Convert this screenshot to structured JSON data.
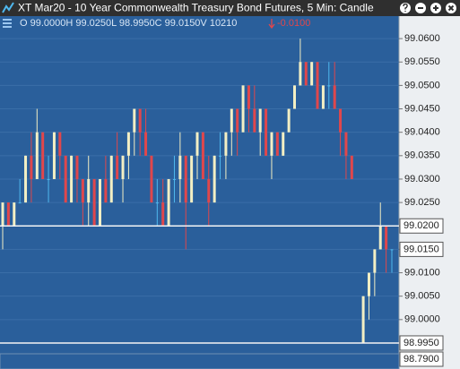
{
  "chart_data": {
    "type": "candlestick",
    "title": "XT Mar20 - 10 Year Commonwealth Treasury Bond Futures, 5 Min: Candle",
    "info": "O 99.0000H 99.0250L 98.9950C 99.0150V 10210",
    "change": "-0.0100",
    "up_color": "#f3efc4",
    "down_color": "#e0474c",
    "flat_color": "#4fb8ee",
    "open": [
      99.02,
      99.025,
      99.02,
      99.025,
      99.025,
      99.035,
      99.03,
      99.04,
      99.03,
      99.03,
      99.04,
      99.035,
      99.025,
      99.035,
      99.03,
      99.025,
      99.03,
      99.02,
      99.03,
      99.025,
      99.035,
      99.03,
      99.035,
      99.04,
      99.045,
      99.04,
      99.035,
      99.025,
      99.025,
      99.02,
      99.03,
      99.03,
      99.035,
      99.025,
      99.035,
      99.04,
      99.03,
      99.025,
      99.035,
      99.035,
      99.04,
      99.045,
      99.04,
      99.05,
      99.045,
      99.04,
      99.045,
      99.035,
      99.04,
      99.035,
      99.04,
      99.045,
      99.05,
      99.055,
      99.05,
      99.055,
      99.045,
      99.05,
      99.05,
      99.045,
      99.04,
      99.035,
      null,
      98.995,
      99.005,
      99.01,
      99.015,
      99.02,
      99.015
    ],
    "high": [
      99.025,
      99.025,
      99.025,
      99.03,
      99.035,
      99.04,
      99.045,
      99.04,
      99.035,
      99.04,
      99.04,
      99.035,
      99.035,
      99.035,
      99.03,
      99.035,
      99.03,
      99.03,
      99.035,
      99.035,
      99.04,
      99.035,
      99.04,
      99.045,
      99.045,
      99.045,
      99.035,
      99.03,
      99.03,
      99.03,
      99.035,
      99.04,
      99.035,
      99.035,
      99.04,
      99.04,
      99.035,
      99.035,
      99.04,
      99.04,
      99.045,
      99.045,
      99.05,
      99.05,
      99.05,
      99.045,
      99.045,
      99.04,
      99.04,
      99.04,
      99.045,
      99.05,
      99.06,
      99.055,
      99.055,
      99.055,
      99.05,
      99.055,
      99.055,
      99.045,
      99.04,
      99.035,
      null,
      99.005,
      99.01,
      99.015,
      99.025,
      99.02,
      99.015
    ],
    "low": [
      99.015,
      99.02,
      99.02,
      99.025,
      99.025,
      99.025,
      99.03,
      99.03,
      99.025,
      99.03,
      99.03,
      99.025,
      99.025,
      99.025,
      99.02,
      99.02,
      99.02,
      99.02,
      99.025,
      99.025,
      99.03,
      99.025,
      99.03,
      99.035,
      99.035,
      99.035,
      99.025,
      99.02,
      99.02,
      99.02,
      99.025,
      99.025,
      99.015,
      99.025,
      99.03,
      99.03,
      99.02,
      99.025,
      99.03,
      99.03,
      99.035,
      99.035,
      99.04,
      99.04,
      99.04,
      99.035,
      99.035,
      99.03,
      99.035,
      99.035,
      99.04,
      99.045,
      99.05,
      99.05,
      99.05,
      99.045,
      99.045,
      99.045,
      99.045,
      99.035,
      99.03,
      99.03,
      null,
      98.995,
      99.0,
      99.005,
      99.015,
      99.01,
      99.01
    ],
    "close": [
      99.025,
      99.02,
      99.025,
      99.025,
      99.035,
      99.03,
      99.04,
      99.03,
      99.03,
      99.04,
      99.035,
      99.025,
      99.035,
      99.03,
      99.025,
      99.03,
      99.02,
      99.03,
      99.025,
      99.035,
      99.03,
      99.035,
      99.04,
      99.045,
      99.04,
      99.035,
      99.025,
      99.025,
      99.02,
      99.03,
      99.03,
      99.035,
      99.025,
      99.035,
      99.04,
      99.03,
      99.025,
      99.035,
      99.035,
      99.04,
      99.045,
      99.04,
      99.05,
      99.045,
      99.04,
      99.045,
      99.035,
      99.04,
      99.035,
      99.04,
      99.045,
      99.05,
      99.055,
      99.05,
      99.055,
      99.045,
      99.05,
      99.05,
      99.045,
      99.04,
      99.035,
      99.03,
      null,
      99.005,
      99.01,
      99.015,
      99.02,
      99.015,
      99.015
    ],
    "ylim": [
      98.9927,
      99.0648
    ],
    "yticks": [
      {
        "value": 99.0,
        "label": "99.0000"
      },
      {
        "value": 99.005,
        "label": "99.0050"
      },
      {
        "value": 99.01,
        "label": "99.0100"
      },
      {
        "value": 99.015,
        "label": "99.0150"
      },
      {
        "value": 99.02,
        "label": "99.0200"
      },
      {
        "value": 99.025,
        "label": "99.0250"
      },
      {
        "value": 99.03,
        "label": "99.0300"
      },
      {
        "value": 99.035,
        "label": "99.0350"
      },
      {
        "value": 99.04,
        "label": "99.0400"
      },
      {
        "value": 99.045,
        "label": "99.0450"
      },
      {
        "value": 99.05,
        "label": "99.0500"
      },
      {
        "value": 99.055,
        "label": "99.0550"
      },
      {
        "value": 99.06,
        "label": "99.0600"
      }
    ],
    "price_lines": [
      {
        "value": 99.02,
        "label": "99.0200"
      },
      {
        "value": 98.995,
        "label": "98.9950"
      }
    ],
    "last_price": {
      "value": 99.015,
      "label": "99.0150"
    },
    "scale_bottom_label": "98.7900",
    "grid": true
  }
}
